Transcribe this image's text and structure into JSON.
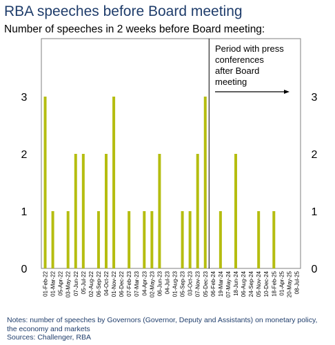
{
  "header": {
    "title": "RBA speeches before Board meeting",
    "subtitle": "Number of speeches in 2 weeks before Board meeting:"
  },
  "annotation": {
    "lines": [
      "Period with press",
      "conferences",
      "after Board",
      "meeting"
    ]
  },
  "footer": {
    "notes_line1": "Notes: number of speeches by Governors (Governor, Deputy and Assistants) on monetary policy,",
    "notes_line2": "the economy and markets",
    "sources": "Sources: Challenger, RBA"
  },
  "colors": {
    "bar": "#b5bd10",
    "axis": "#7f7f7f",
    "title": "#1f3d6b"
  },
  "chart_data": {
    "type": "bar",
    "title": "RBA speeches before Board meeting",
    "subtitle": "Number of speeches in 2 weeks before Board meeting:",
    "xlabel": "",
    "ylabel": "",
    "ylim": [
      0,
      3
    ],
    "yticks": [
      0,
      1,
      2,
      3
    ],
    "dual_y_axis": true,
    "grid": false,
    "categories": [
      "01-Feb-22",
      "01-Mar-22",
      "05-Apr-22",
      "03-May-22",
      "07-Jun-22",
      "05-Jul-22",
      "02-Aug-22",
      "06-Sep-22",
      "04-Oct-22",
      "01-Nov-22",
      "06-Dec-22",
      "07-Feb-23",
      "07-Mar-23",
      "04-Apr-23",
      "02-May-23",
      "06-Jun-23",
      "04-Jul-23",
      "01-Aug-23",
      "05-Sep-23",
      "03-Oct-23",
      "07-Nov-23",
      "05-Dec-23",
      "06-Feb-24",
      "19-Mar-24",
      "07-May-24",
      "18-Jun-24",
      "06-Aug-24",
      "24-Sep-24",
      "05-Nov-24",
      "10-Dec-24",
      "18-Feb-25",
      "01-Apr-25",
      "20-May-25",
      "08-Jul-25"
    ],
    "values": [
      3,
      1,
      0,
      1,
      2,
      2,
      0,
      1,
      2,
      3,
      0,
      1,
      0,
      1,
      1,
      2,
      0,
      0,
      1,
      1,
      2,
      3,
      0,
      1,
      0,
      2,
      0,
      0,
      1,
      0,
      1,
      0,
      0,
      0
    ],
    "divider_after": "05-Dec-23",
    "divider_label": "Period with press conferences after Board meeting"
  }
}
